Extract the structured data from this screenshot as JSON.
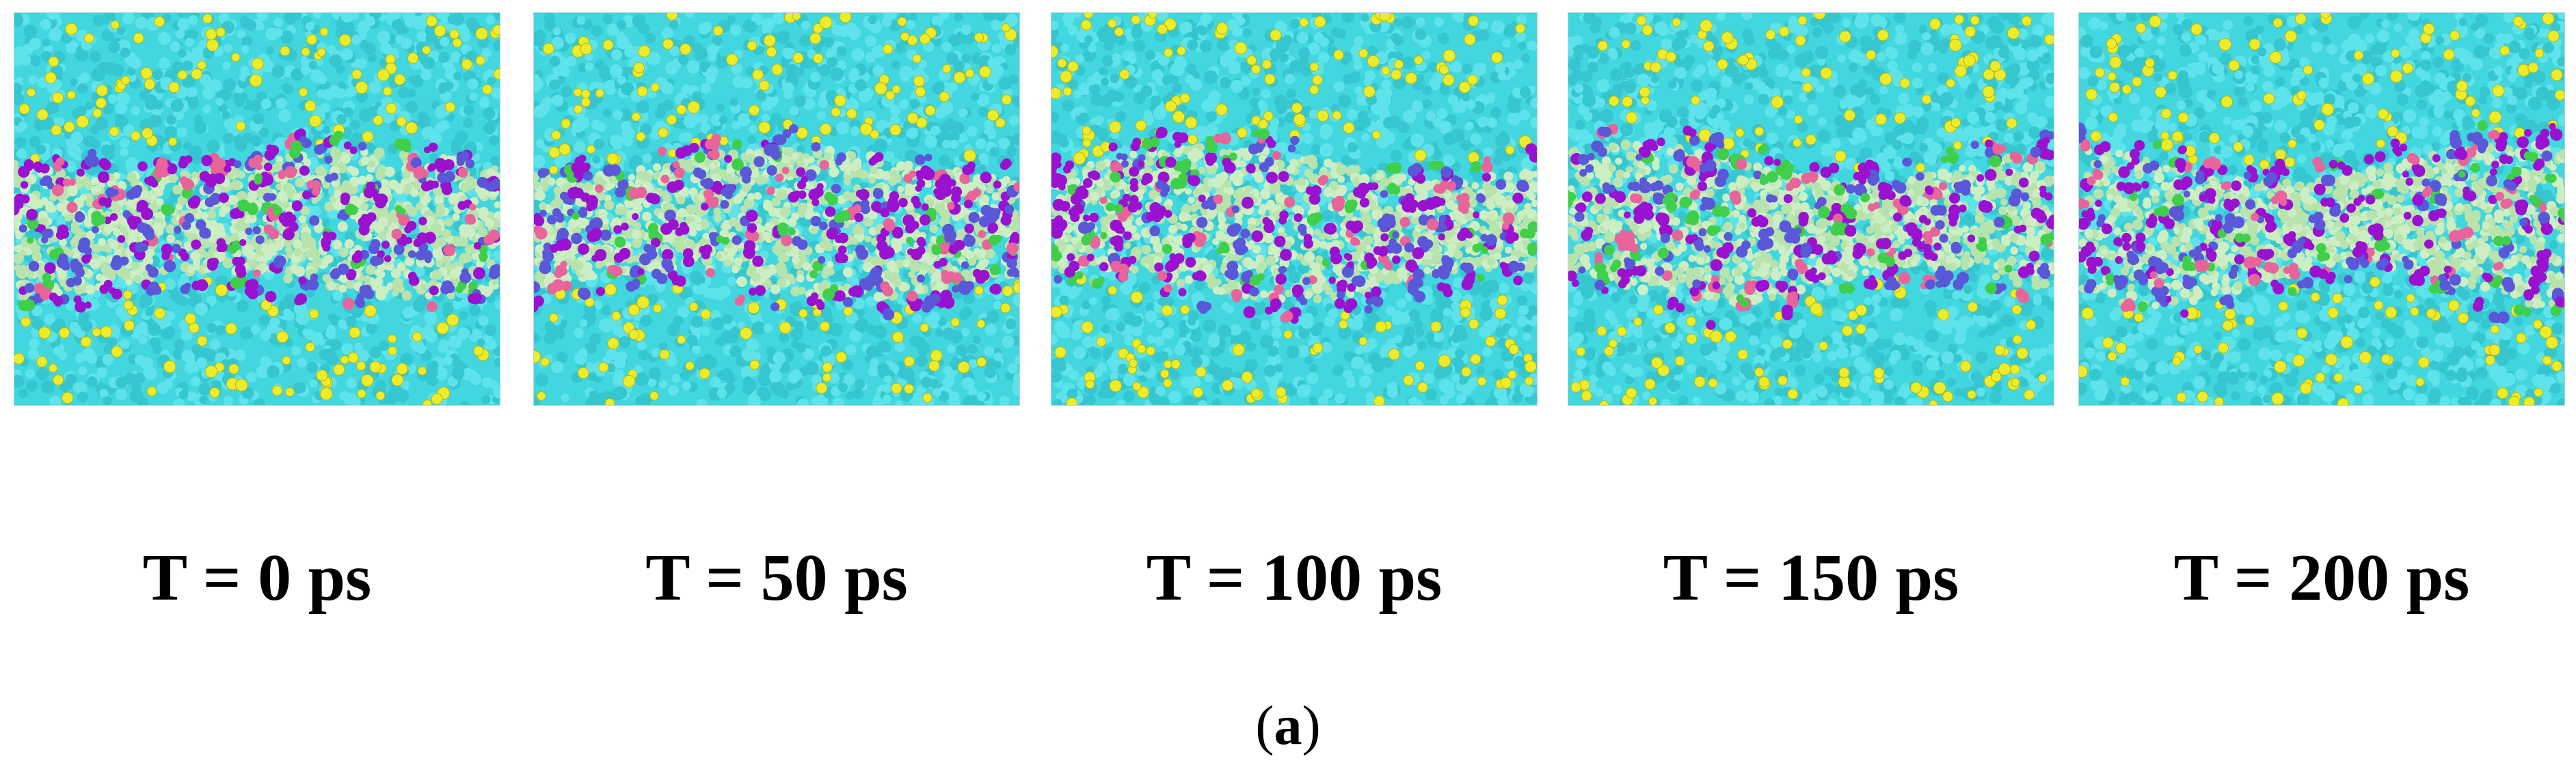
{
  "panels": [
    {
      "time_label": "T = 0 ps"
    },
    {
      "time_label": "T = 50 ps"
    },
    {
      "time_label": "T = 100 ps"
    },
    {
      "time_label": "T = 150 ps"
    },
    {
      "time_label": "T = 200 ps"
    }
  ],
  "figure_label": {
    "open": "(",
    "letter": "a",
    "close": ")"
  },
  "colors": {
    "background_particles": "#42d6de",
    "yellow_particles": "#ecec2a",
    "interface_particles": "#cdeec3",
    "purple_particles": "#9a11d0",
    "blue_particles": "#5a57d8",
    "pink_particles": "#e8649a",
    "green_particles": "#3fcf4a"
  }
}
